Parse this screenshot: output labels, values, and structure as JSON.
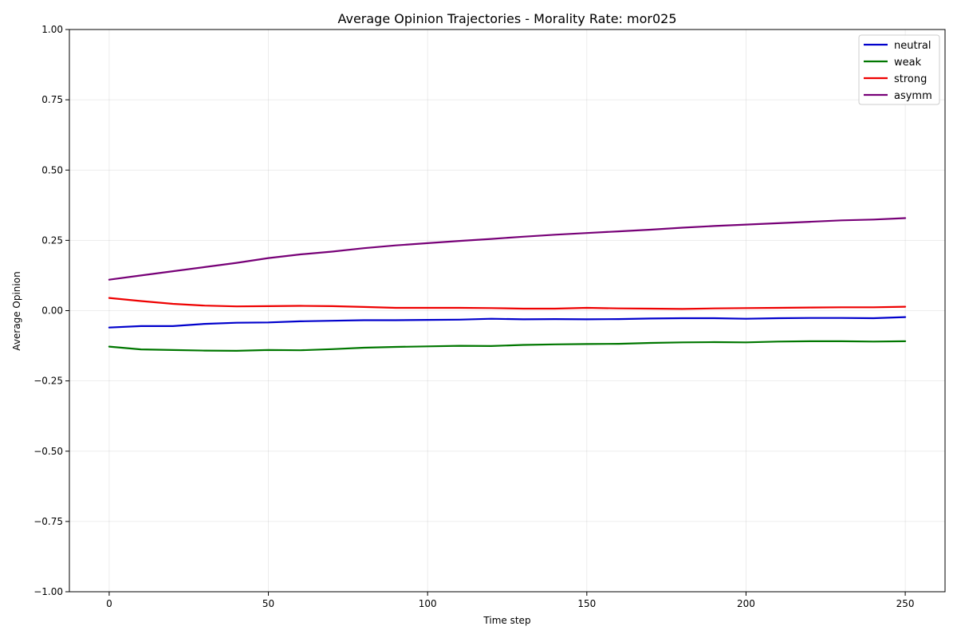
{
  "chart_data": {
    "type": "line",
    "title": "Average Opinion Trajectories - Morality Rate: mor025",
    "xlabel": "Time step",
    "ylabel": "Average Opinion",
    "xlim": [
      -12.5,
      262.5
    ],
    "ylim": [
      -1.0,
      1.0
    ],
    "xticks": [
      0,
      50,
      100,
      150,
      200,
      250
    ],
    "xtick_labels": [
      "0",
      "50",
      "100",
      "150",
      "200",
      "250"
    ],
    "yticks": [
      -1.0,
      -0.75,
      -0.5,
      -0.25,
      0.0,
      0.25,
      0.5,
      0.75,
      1.0
    ],
    "ytick_labels": [
      "−1.00",
      "−0.75",
      "−0.50",
      "−0.25",
      "0.00",
      "0.25",
      "0.50",
      "0.75",
      "1.00"
    ],
    "grid": true,
    "legend_position": "top-right",
    "x": [
      0,
      10,
      20,
      30,
      40,
      50,
      60,
      70,
      80,
      90,
      100,
      110,
      120,
      130,
      140,
      150,
      160,
      170,
      180,
      190,
      200,
      210,
      220,
      230,
      240,
      250
    ],
    "series": [
      {
        "name": "neutral",
        "color": "#0000cc",
        "values": [
          -0.06,
          -0.055,
          -0.055,
          -0.047,
          -0.043,
          -0.042,
          -0.038,
          -0.036,
          -0.034,
          -0.034,
          -0.033,
          -0.032,
          -0.029,
          -0.031,
          -0.03,
          -0.031,
          -0.03,
          -0.028,
          -0.027,
          -0.027,
          -0.029,
          -0.027,
          -0.026,
          -0.026,
          -0.027,
          -0.023
        ]
      },
      {
        "name": "weak",
        "color": "#007700",
        "values": [
          -0.128,
          -0.138,
          -0.14,
          -0.142,
          -0.143,
          -0.14,
          -0.141,
          -0.137,
          -0.132,
          -0.129,
          -0.127,
          -0.125,
          -0.126,
          -0.122,
          -0.12,
          -0.119,
          -0.118,
          -0.115,
          -0.113,
          -0.112,
          -0.113,
          -0.11,
          -0.109,
          -0.109,
          -0.11,
          -0.109
        ]
      },
      {
        "name": "strong",
        "color": "#ee0000",
        "values": [
          0.045,
          0.034,
          0.024,
          0.018,
          0.015,
          0.016,
          0.017,
          0.016,
          0.013,
          0.01,
          0.01,
          0.01,
          0.009,
          0.007,
          0.007,
          0.01,
          0.008,
          0.007,
          0.006,
          0.008,
          0.009,
          0.01,
          0.011,
          0.012,
          0.012,
          0.014
        ]
      },
      {
        "name": "asymm",
        "color": "#770077",
        "values": [
          0.11,
          0.125,
          0.14,
          0.155,
          0.17,
          0.187,
          0.2,
          0.21,
          0.222,
          0.232,
          0.24,
          0.248,
          0.255,
          0.263,
          0.27,
          0.276,
          0.282,
          0.288,
          0.295,
          0.301,
          0.306,
          0.311,
          0.316,
          0.321,
          0.324,
          0.329
        ]
      }
    ]
  }
}
